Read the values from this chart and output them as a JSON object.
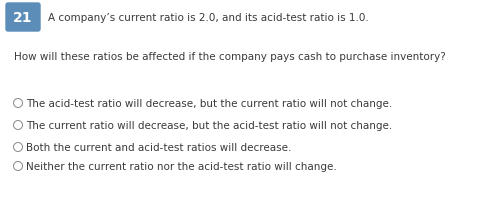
{
  "question_number": "21",
  "question_number_bg": "#5b8db8",
  "question_number_color": "#ffffff",
  "statement": "A company’s current ratio is 2.0, and its acid-test ratio is 1.0.",
  "question": "How will these ratios be affected if the company pays cash to purchase inventory?",
  "options": [
    "The acid-test ratio will decrease, but the current ratio will not change.",
    "The current ratio will decrease, but the acid-test ratio will not change.",
    "Both the current and acid-test ratios will decrease.",
    "Neither the current ratio nor the acid-test ratio will change."
  ],
  "text_color": "#3a3a3a",
  "question_color": "#3a3a3a",
  "bg_color": "#ffffff",
  "fig_width": 4.8,
  "fig_height": 2.03,
  "dpi": 100
}
